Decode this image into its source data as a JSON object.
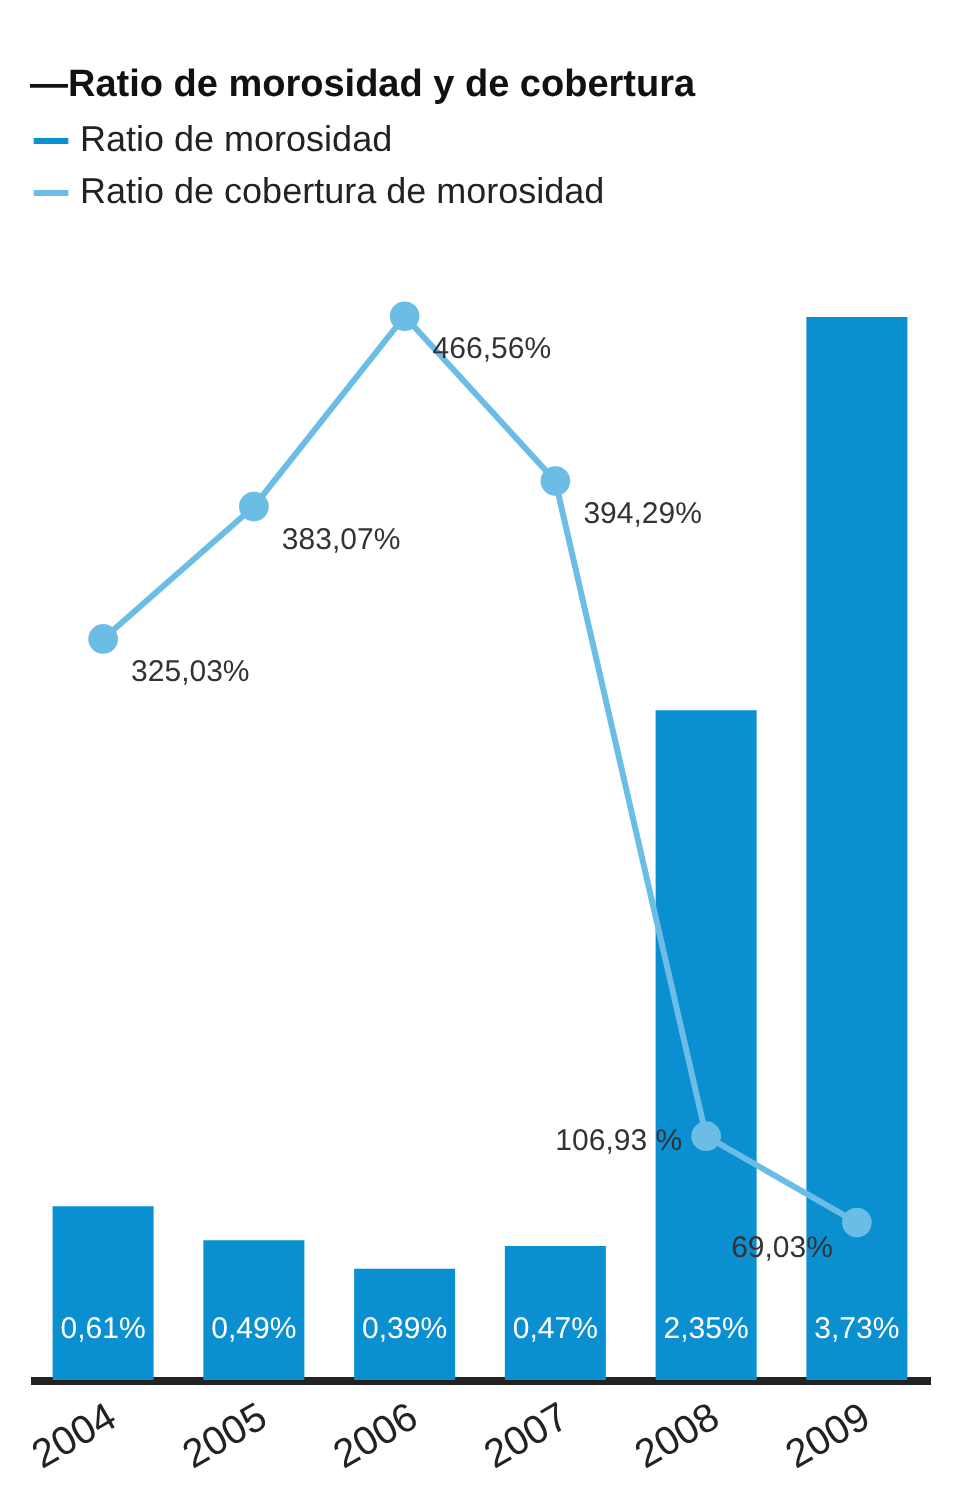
{
  "chart_data": {
    "type": "bar",
    "title": "—Ratio de morosidad y de cobertura",
    "categories": [
      "2004",
      "2005",
      "2006",
      "2007",
      "2008",
      "2009"
    ],
    "series": [
      {
        "name": "Ratio de morosidad",
        "color": "#0a8fd0",
        "values": [
          0.61,
          0.49,
          0.39,
          0.47,
          2.35,
          3.73
        ],
        "value_labels": [
          "0,61%",
          "0,49%",
          "0,39%",
          "0,47%",
          "2,35%",
          "3,73%"
        ]
      },
      {
        "name": "Ratio de cobertura de morosidad",
        "type": "line",
        "axis": "y2",
        "color": "#6bbde6",
        "values": [
          325.03,
          383.07,
          466.56,
          394.29,
          106.93,
          69.03
        ],
        "value_labels": [
          "325,03%",
          "383,07%",
          "466,56%",
          "394,29%",
          "106,93 %",
          "69,03%"
        ]
      }
    ],
    "tick_labels": "x",
    "legend": "top left",
    "marker": "circle"
  }
}
